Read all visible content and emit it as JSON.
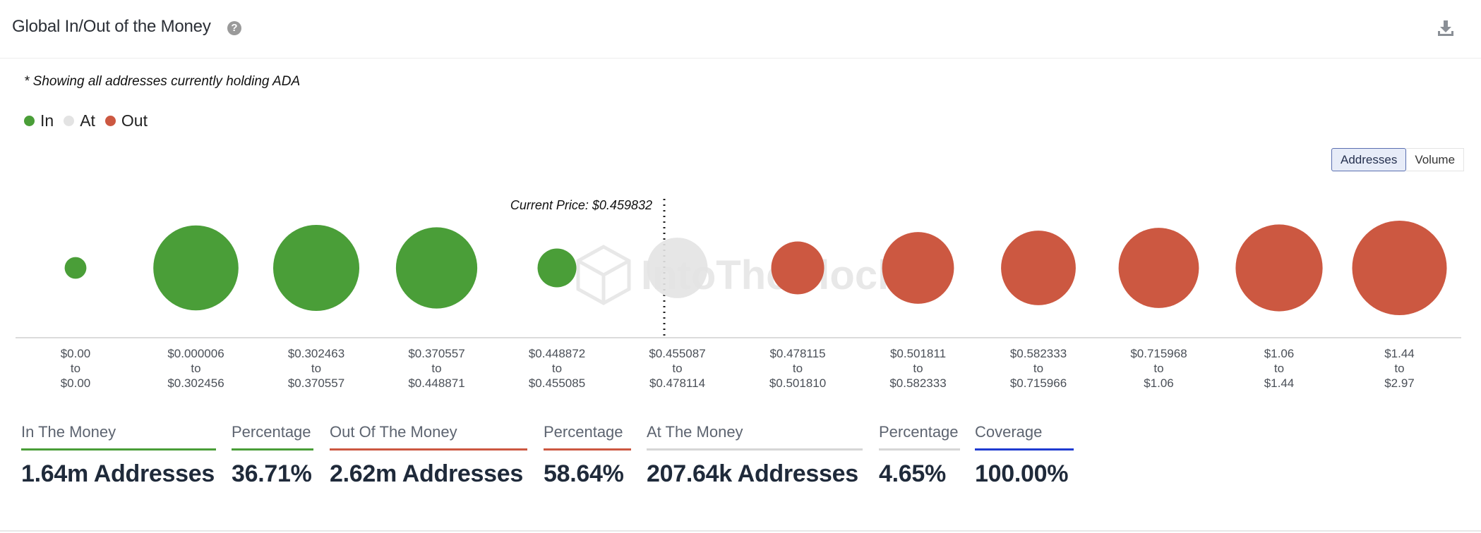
{
  "header": {
    "title": "Global In/Out of the Money",
    "help_icon": "question-circle-icon",
    "download_icon": "download-icon"
  },
  "note": "* Showing all addresses currently holding ADA",
  "legend": [
    {
      "label": "In",
      "color": "#4a9e38"
    },
    {
      "label": "At",
      "color": "#e3e3e3"
    },
    {
      "label": "Out",
      "color": "#cc5841"
    }
  ],
  "toggle": {
    "addresses": "Addresses",
    "volume": "Volume",
    "active": "Addresses"
  },
  "chart_data": {
    "type": "bubble",
    "current_price_label": "Current Price: $0.459832",
    "watermark": "IntoTheBlock",
    "colors": {
      "in": "#4a9e38",
      "at": "#e3e3e3",
      "out": "#cc5841"
    },
    "ranges": [
      {
        "from": "$0.00",
        "to_word": "to",
        "to": "$0.00",
        "status": "in",
        "relative_size": 0.23
      },
      {
        "from": "$0.000006",
        "to_word": "to",
        "to": "$0.302456",
        "status": "in",
        "relative_size": 0.9
      },
      {
        "from": "$0.302463",
        "to_word": "to",
        "to": "$0.370557",
        "status": "in",
        "relative_size": 0.91
      },
      {
        "from": "$0.370557",
        "to_word": "to",
        "to": "$0.448871",
        "status": "in",
        "relative_size": 0.86
      },
      {
        "from": "$0.448872",
        "to_word": "to",
        "to": "$0.455085",
        "status": "in",
        "relative_size": 0.41
      },
      {
        "from": "$0.455087",
        "to_word": "to",
        "to": "$0.478114",
        "status": "at",
        "relative_size": 0.64
      },
      {
        "from": "$0.478115",
        "to_word": "to",
        "to": "$0.501810",
        "status": "out",
        "relative_size": 0.56
      },
      {
        "from": "$0.501811",
        "to_word": "to",
        "to": "$0.582333",
        "status": "out",
        "relative_size": 0.76
      },
      {
        "from": "$0.582333",
        "to_word": "to",
        "to": "$0.715966",
        "status": "out",
        "relative_size": 0.79
      },
      {
        "from": "$0.715968",
        "to_word": "to",
        "to": "$1.06",
        "status": "out",
        "relative_size": 0.85
      },
      {
        "from": "$1.06",
        "to_word": "to",
        "to": "$1.44",
        "status": "out",
        "relative_size": 0.92
      },
      {
        "from": "$1.44",
        "to_word": "to",
        "to": "$2.97",
        "status": "out",
        "relative_size": 1.0
      }
    ]
  },
  "stats": [
    {
      "label": "In The Money",
      "value": "1.64m Addresses",
      "color": "#4a9e38"
    },
    {
      "label": "Percentage",
      "value": "36.71%",
      "color": "#4a9e38"
    },
    {
      "label": "Out Of The Money",
      "value": "2.62m Addresses",
      "color": "#cc5841"
    },
    {
      "label": "Percentage",
      "value": "58.64%",
      "color": "#cc5841"
    },
    {
      "label": "At The Money",
      "value": "207.64k Addresses",
      "color": "#d6d6d6"
    },
    {
      "label": "Percentage",
      "value": "4.65%",
      "color": "#d6d6d6"
    },
    {
      "label": "Coverage",
      "value": "100.00%",
      "color": "#1f3bd1"
    }
  ]
}
